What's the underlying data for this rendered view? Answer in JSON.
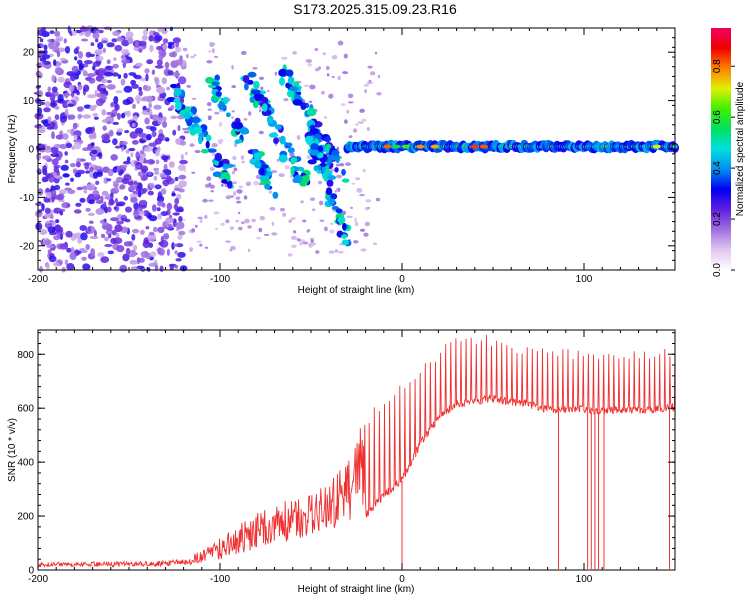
{
  "figure": {
    "title": "S173.2025.315.09.23.R16"
  },
  "chart_data": [
    {
      "type": "heatmap",
      "panel": "spectrogram",
      "xlabel": "Height of straight line (km)",
      "ylabel": "Frequency (Hz)",
      "xlim": [
        -200,
        150
      ],
      "ylim": [
        -25,
        25
      ],
      "x_ticks": [
        -200,
        -100,
        0,
        100
      ],
      "y_ticks": [
        -20,
        -10,
        0,
        10,
        20
      ],
      "colorbar": {
        "label": "Normalized spectral amplitude",
        "range": [
          0,
          0.95
        ],
        "ticks": [
          0.0,
          0.2,
          0.4,
          0.6,
          0.8
        ],
        "tick_labels": [
          "0.0",
          "0.2",
          "0.4",
          "0.6",
          "0.8"
        ],
        "colors": [
          "#ffffff",
          "#e0c8f0",
          "#a070e0",
          "#6020e0",
          "#0000f0",
          "#0090f0",
          "#00e0e0",
          "#00e060",
          "#40f000",
          "#e0f000",
          "#ff8000",
          "#f00000",
          "#f00060"
        ]
      },
      "features": [
        {
          "name": "zero-doppler carrier",
          "x_range": [
            -30,
            150
          ],
          "freq": 0.5,
          "peak_amplitude": 0.9
        },
        {
          "name": "scattered noise region",
          "x_range": [
            -200,
            -120
          ],
          "freq_range": [
            -25,
            25
          ]
        },
        {
          "name": "slanted echo streaks",
          "x_range": [
            -120,
            -30
          ],
          "freq_range": [
            -20,
            20
          ]
        }
      ]
    },
    {
      "type": "line",
      "panel": "snr",
      "xlabel": "Height of straight line (km)",
      "ylabel": "SNR (10 * v/v)",
      "xlim": [
        -200,
        150
      ],
      "ylim": [
        0,
        890
      ],
      "x_ticks": [
        -200,
        -100,
        0,
        100
      ],
      "y_ticks": [
        0,
        200,
        400,
        600,
        800
      ],
      "series": [
        {
          "name": "SNR",
          "color": "#f03030",
          "x": [
            -200,
            -180,
            -160,
            -140,
            -120,
            -110,
            -100,
            -90,
            -80,
            -70,
            -60,
            -50,
            -40,
            -30,
            -20,
            -10,
            0,
            10,
            20,
            30,
            40,
            50,
            60,
            70,
            80,
            90,
            100,
            110,
            120,
            130,
            140,
            150
          ],
          "baseline": [
            10,
            12,
            12,
            14,
            15,
            25,
            40,
            55,
            75,
            95,
            110,
            130,
            150,
            170,
            200,
            270,
            330,
            460,
            560,
            610,
            620,
            630,
            620,
            610,
            590,
            590,
            590,
            585,
            590,
            590,
            590,
            600
          ],
          "peaks": [
            28,
            30,
            30,
            32,
            40,
            80,
            120,
            170,
            220,
            250,
            260,
            290,
            320,
            420,
            570,
            640,
            690,
            760,
            820,
            870,
            880,
            870,
            850,
            830,
            820,
            820,
            820,
            820,
            820,
            820,
            820,
            820
          ]
        }
      ],
      "dropouts_x": [
        0,
        86,
        102,
        104,
        106,
        108,
        111,
        147
      ]
    }
  ]
}
